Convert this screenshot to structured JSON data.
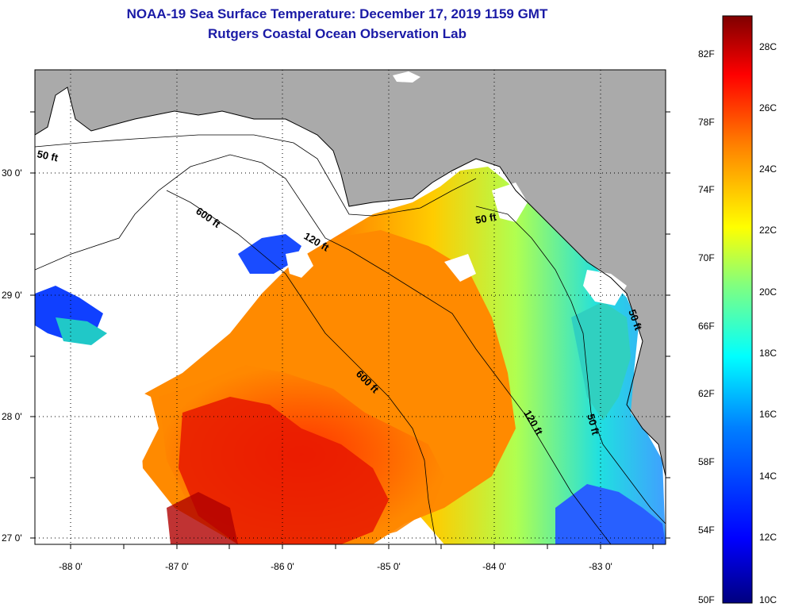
{
  "title": "NOAA-19 Sea Surface Temperature:  December 17, 2019 1159 GMT",
  "subtitle": "Rutgers Coastal Ocean Observation Lab",
  "lat_labels": [
    "30 0'",
    "29 0'",
    "28 0'",
    "27 0'"
  ],
  "lon_labels": [
    "-88 0'",
    "-87 0'",
    "-86 0'",
    "-85 0'",
    "-84 0'",
    "-83 0'"
  ],
  "contour_labels": [
    "50 ft",
    "600 ft",
    "120 ft",
    "50 ft",
    "600 ft",
    "120 ft",
    "50 ft",
    "50 ft"
  ],
  "colorbar": {
    "fahrenheit": [
      "82F",
      "78F",
      "74F",
      "70F",
      "66F",
      "62F",
      "58F",
      "54F",
      "50F"
    ],
    "celsius": [
      "28C",
      "26C",
      "24C",
      "22C",
      "20C",
      "18C",
      "16C",
      "14C",
      "12C",
      "10C"
    ],
    "colors": [
      "#00007f",
      "#0000ff",
      "#007fff",
      "#00ffff",
      "#7fff7f",
      "#ffff00",
      "#ff7f00",
      "#ff0000",
      "#7f0000"
    ]
  },
  "colors": {
    "land": "#aaaaaa",
    "cloud": "#ffffff",
    "title": "#1a1aa6"
  }
}
